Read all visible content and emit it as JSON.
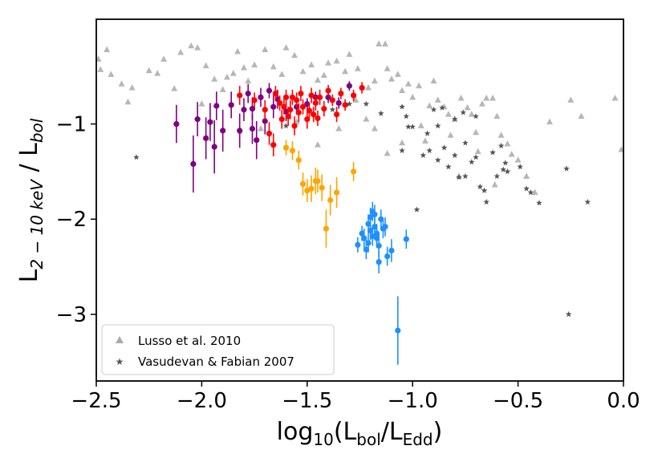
{
  "chart_data": {
    "type": "scatter",
    "xlabel": "log10(Lbol/LEdd)",
    "xlabel_main": "log",
    "xlabel_sub": "10",
    "xlabel_open": "(L",
    "xlabel_sub2": "bol",
    "xlabel_mid": "/L",
    "xlabel_sub3": "Edd",
    "xlabel_close": ")",
    "ylabel": "L2-10 keV / Lbol",
    "ylabel_main": "L",
    "ylabel_sub": "2 − 10 keV",
    "ylabel_mid": " / L",
    "ylabel_sub2": "bol",
    "xlim": [
      -2.5,
      0.0
    ],
    "ylim": [
      -3.7,
      0.1
    ],
    "xticks": [
      -2.5,
      -2.0,
      -1.5,
      -1.0,
      -0.5,
      0.0
    ],
    "xtick_labels": [
      "−2.5",
      "−2.0",
      "−1.5",
      "−1.0",
      "−0.5",
      "0.0"
    ],
    "yticks": [
      -1,
      -2,
      -3
    ],
    "ytick_labels": [
      "−1",
      "−2",
      "−3"
    ],
    "legend": {
      "position": "lower-left",
      "entries": [
        {
          "label": "Lusso et al. 2010",
          "marker": "triangle",
          "color": "#aaaaaa"
        },
        {
          "label": "Vasudevan & Fabian 2007",
          "marker": "star",
          "color": "#555555"
        }
      ]
    },
    "series": [
      {
        "name": "Lusso et al. 2010",
        "marker": "triangle",
        "color": "#aaaaaa",
        "points": [
          [
            -2.49,
            -0.32
          ],
          [
            -2.48,
            -0.43
          ],
          [
            -2.45,
            -0.22
          ],
          [
            -2.43,
            -0.48
          ],
          [
            -2.38,
            -0.58
          ],
          [
            -2.35,
            -0.77
          ],
          [
            -2.33,
            -0.62
          ],
          [
            -2.25,
            -0.44
          ],
          [
            -2.21,
            -0.47
          ],
          [
            -2.18,
            -0.32
          ],
          [
            -2.13,
            -0.63
          ],
          [
            -2.1,
            -0.25
          ],
          [
            -2.05,
            -0.18
          ],
          [
            -2.02,
            -0.2
          ],
          [
            -1.98,
            -0.39
          ],
          [
            -1.94,
            -0.53
          ],
          [
            -1.88,
            -0.51
          ],
          [
            -1.85,
            -0.47
          ],
          [
            -1.83,
            -0.24
          ],
          [
            -1.8,
            -0.41
          ],
          [
            -1.78,
            -0.55
          ],
          [
            -1.75,
            -0.38
          ],
          [
            -1.7,
            -0.22
          ],
          [
            -1.66,
            -0.4
          ],
          [
            -1.62,
            -0.48
          ],
          [
            -1.6,
            -0.2
          ],
          [
            -1.56,
            -0.28
          ],
          [
            -1.52,
            -0.45
          ],
          [
            -1.48,
            -0.38
          ],
          [
            -1.45,
            -0.54
          ],
          [
            -1.42,
            -0.49
          ],
          [
            -1.4,
            -0.36
          ],
          [
            -1.36,
            -0.34
          ],
          [
            -1.32,
            -0.45
          ],
          [
            -1.3,
            -0.27
          ],
          [
            -1.26,
            -0.42
          ],
          [
            -1.21,
            -0.62
          ],
          [
            -1.18,
            -0.55
          ],
          [
            -1.16,
            -0.16
          ],
          [
            -1.13,
            -0.16
          ],
          [
            -1.12,
            -0.42
          ],
          [
            -1.1,
            -0.53
          ],
          [
            -1.07,
            -0.48
          ],
          [
            -1.05,
            -0.65
          ],
          [
            -1.02,
            -0.58
          ],
          [
            -1.0,
            -0.72
          ],
          [
            -0.97,
            -0.6
          ],
          [
            -0.9,
            -0.55
          ],
          [
            -0.88,
            -0.75
          ],
          [
            -0.85,
            -0.82
          ],
          [
            -0.83,
            -0.9
          ],
          [
            -0.8,
            -0.95
          ],
          [
            -0.77,
            -0.73
          ],
          [
            -0.74,
            -0.83
          ],
          [
            -0.72,
            -0.9
          ],
          [
            -0.7,
            -1.09
          ],
          [
            -0.67,
            -0.79
          ],
          [
            -0.65,
            -0.73
          ],
          [
            -0.62,
            -0.73
          ],
          [
            -0.6,
            -0.92
          ],
          [
            -0.58,
            -1.12
          ],
          [
            -0.55,
            -1.21
          ],
          [
            -0.53,
            -1.32
          ],
          [
            -0.5,
            -1.38
          ],
          [
            -0.46,
            -1.55
          ],
          [
            -0.42,
            -1.72
          ],
          [
            -0.35,
            -0.98
          ],
          [
            -0.25,
            -0.75
          ],
          [
            -0.2,
            -0.92
          ],
          [
            -0.04,
            -0.73
          ],
          [
            -0.01,
            -1.27
          ],
          [
            -1.27,
            -0.75
          ],
          [
            -1.22,
            -0.95
          ],
          [
            -1.18,
            -1.05
          ],
          [
            -1.35,
            -1.05
          ],
          [
            -1.55,
            -0.98
          ],
          [
            -1.72,
            -1.05
          ],
          [
            -2.0,
            -0.79
          ],
          [
            -1.9,
            -0.64
          ],
          [
            -1.05,
            -1.2
          ],
          [
            -0.94,
            -1.18
          ],
          [
            -0.92,
            -0.81
          ],
          [
            -1.45,
            -1.22
          ],
          [
            -1.12,
            -1.31
          ],
          [
            -0.61,
            -1.64
          ],
          [
            -0.78,
            -1.55
          ],
          [
            -0.69,
            -1.29
          ],
          [
            -0.82,
            -1.12
          ],
          [
            -0.96,
            -1.02
          ]
        ]
      },
      {
        "name": "Vasudevan & Fabian 2007",
        "marker": "star",
        "color": "#555555",
        "points": [
          [
            -2.31,
            -1.35
          ],
          [
            -1.82,
            -1.08
          ],
          [
            -1.6,
            -1.02
          ],
          [
            -1.38,
            -0.85
          ],
          [
            -1.05,
            -1.28
          ],
          [
            -1.0,
            -1.03
          ],
          [
            -0.95,
            -1.33
          ],
          [
            -0.92,
            -1.28
          ],
          [
            -0.88,
            -1.38
          ],
          [
            -0.85,
            -1.25
          ],
          [
            -0.83,
            -1.45
          ],
          [
            -0.8,
            -1.33
          ],
          [
            -0.78,
            -1.56
          ],
          [
            -0.75,
            -1.55
          ],
          [
            -0.72,
            -1.4
          ],
          [
            -0.7,
            -1.35
          ],
          [
            -0.68,
            -1.66
          ],
          [
            -0.66,
            -1.7
          ],
          [
            -0.65,
            -1.82
          ],
          [
            -0.6,
            -1.55
          ],
          [
            -0.58,
            -1.23
          ],
          [
            -0.56,
            -1.41
          ],
          [
            -0.55,
            -1.5
          ],
          [
            -0.9,
            -0.85
          ],
          [
            -0.88,
            -1.02
          ],
          [
            -0.86,
            -0.83
          ],
          [
            -0.76,
            -0.88
          ],
          [
            -0.7,
            -0.92
          ],
          [
            -0.62,
            -1.3
          ],
          [
            -0.57,
            -1.48
          ],
          [
            -0.49,
            -1.45
          ],
          [
            -0.46,
            -1.68
          ],
          [
            -0.44,
            -1.72
          ],
          [
            -0.4,
            -1.83
          ],
          [
            -0.27,
            -1.47
          ],
          [
            -0.17,
            -1.82
          ],
          [
            -0.26,
            -3.0
          ],
          [
            -1.02,
            -1.03
          ],
          [
            -1.03,
            -0.92
          ],
          [
            -0.93,
            -1.1
          ],
          [
            -0.8,
            -0.95
          ],
          [
            -0.75,
            -1.2
          ],
          [
            -1.3,
            -0.79
          ],
          [
            -1.22,
            -0.79
          ],
          [
            -1.15,
            -0.89
          ],
          [
            -1.05,
            -0.82
          ],
          [
            -0.98,
            -1.9
          ]
        ]
      },
      {
        "name": "purple",
        "marker": "circle",
        "color": "#800080",
        "points": [
          [
            -2.12,
            -1.0,
            0.2
          ],
          [
            -2.04,
            -1.42,
            0.3
          ],
          [
            -2.02,
            -0.95,
            0.18
          ],
          [
            -1.98,
            -1.15,
            0.22
          ],
          [
            -1.96,
            -0.98,
            0.2
          ],
          [
            -1.94,
            -1.24,
            0.28
          ],
          [
            -1.93,
            -0.81,
            0.15
          ],
          [
            -1.9,
            -1.07,
            0.22
          ],
          [
            -1.86,
            -0.8,
            0.14
          ],
          [
            -1.82,
            -1.07,
            0.18
          ],
          [
            -1.8,
            -0.85,
            0.12
          ],
          [
            -1.78,
            -0.68,
            0.1
          ],
          [
            -1.76,
            -1.05,
            0.16
          ],
          [
            -1.74,
            -1.17,
            0.2
          ],
          [
            -1.72,
            -0.72,
            0.1
          ],
          [
            -1.7,
            -0.97,
            0.14
          ],
          [
            -1.68,
            -0.65,
            0.08
          ],
          [
            -1.66,
            -0.82,
            0.12
          ],
          [
            -1.64,
            -0.74,
            0.1
          ],
          [
            -1.6,
            -0.87,
            0.1
          ],
          [
            -1.55,
            -0.82,
            0.08
          ],
          [
            -1.5,
            -0.79,
            0.06
          ],
          [
            -1.46,
            -0.72,
            0.06
          ],
          [
            -1.4,
            -0.72,
            0.06
          ],
          [
            -1.35,
            -0.78,
            0.06
          ],
          [
            -1.3,
            -0.6,
            0.05
          ],
          [
            -1.76,
            -0.84,
            0.12
          ]
        ]
      },
      {
        "name": "red",
        "marker": "circle",
        "color": "#ff0000",
        "points": [
          [
            -1.82,
            -0.7,
            0.1
          ],
          [
            -1.75,
            -0.75,
            0.08
          ],
          [
            -1.7,
            -0.85,
            0.1
          ],
          [
            -1.68,
            -1.1,
            0.12
          ],
          [
            -1.66,
            -1.22,
            0.12
          ],
          [
            -1.65,
            -0.68,
            0.08
          ],
          [
            -1.63,
            -0.78,
            0.08
          ],
          [
            -1.62,
            -0.95,
            0.1
          ],
          [
            -1.6,
            -0.72,
            0.08
          ],
          [
            -1.59,
            -0.92,
            0.1
          ],
          [
            -1.58,
            -0.85,
            0.1
          ],
          [
            -1.56,
            -1.02,
            0.1
          ],
          [
            -1.55,
            -0.75,
            0.08
          ],
          [
            -1.54,
            -0.88,
            0.1
          ],
          [
            -1.53,
            -0.68,
            0.08
          ],
          [
            -1.52,
            -0.82,
            0.08
          ],
          [
            -1.5,
            -0.95,
            0.1
          ],
          [
            -1.48,
            -0.7,
            0.08
          ],
          [
            -1.47,
            -0.9,
            0.08
          ],
          [
            -1.46,
            -0.78,
            0.08
          ],
          [
            -1.44,
            -0.72,
            0.08
          ],
          [
            -1.42,
            -0.84,
            0.08
          ],
          [
            -1.4,
            -0.65,
            0.06
          ],
          [
            -1.38,
            -0.75,
            0.06
          ],
          [
            -1.36,
            -0.9,
            0.08
          ],
          [
            -1.34,
            -0.68,
            0.06
          ],
          [
            -1.32,
            -0.8,
            0.06
          ],
          [
            -1.28,
            -0.7,
            0.06
          ],
          [
            -1.24,
            -0.62,
            0.06
          ],
          [
            -1.61,
            -0.82,
            0.08
          ],
          [
            -1.57,
            -0.72,
            0.08
          ],
          [
            -1.49,
            -0.86,
            0.08
          ],
          [
            -1.45,
            -0.94,
            0.08
          ]
        ]
      },
      {
        "name": "orange",
        "marker": "circle",
        "color": "#ffa500",
        "points": [
          [
            -1.6,
            -1.25,
            0.08
          ],
          [
            -1.57,
            -1.28,
            0.1
          ],
          [
            -1.54,
            -1.38,
            0.1
          ],
          [
            -1.52,
            -1.63,
            0.12
          ],
          [
            -1.5,
            -1.7,
            0.12
          ],
          [
            -1.48,
            -1.68,
            0.14
          ],
          [
            -1.46,
            -1.6,
            0.14
          ],
          [
            -1.45,
            -1.6,
            0.12
          ],
          [
            -1.43,
            -1.67,
            0.14
          ],
          [
            -1.41,
            -2.1,
            0.2
          ],
          [
            -1.39,
            -1.8,
            0.16
          ],
          [
            -1.36,
            -1.72,
            0.16
          ],
          [
            -1.28,
            -1.5,
            0.1
          ]
        ]
      },
      {
        "name": "blue",
        "marker": "circle",
        "color": "#1e90ff",
        "points": [
          [
            -1.26,
            -2.27,
            0.08
          ],
          [
            -1.24,
            -2.15,
            0.08
          ],
          [
            -1.23,
            -2.2,
            0.1
          ],
          [
            -1.22,
            -2.32,
            0.1
          ],
          [
            -1.21,
            -2.05,
            0.1
          ],
          [
            -1.21,
            -2.25,
            0.1
          ],
          [
            -1.2,
            -2.12,
            0.1
          ],
          [
            -1.2,
            -1.98,
            0.1
          ],
          [
            -1.19,
            -2.18,
            0.1
          ],
          [
            -1.18,
            -2.08,
            0.1
          ],
          [
            -1.18,
            -1.95,
            0.1
          ],
          [
            -1.17,
            -2.15,
            0.1
          ],
          [
            -1.16,
            -2.28,
            0.12
          ],
          [
            -1.16,
            -2.45,
            0.12
          ],
          [
            -1.15,
            -2.0,
            0.1
          ],
          [
            -1.14,
            -2.1,
            0.1
          ],
          [
            -1.13,
            -2.08,
            0.1
          ],
          [
            -1.12,
            -2.39,
            0.1
          ],
          [
            -1.1,
            -2.33,
            0.12
          ],
          [
            -1.07,
            -3.17,
            0.36
          ],
          [
            -1.03,
            -2.21,
            0.1
          ],
          [
            -1.19,
            -1.92,
            0.1
          ],
          [
            -1.17,
            -2.2,
            0.1
          ]
        ]
      }
    ]
  }
}
